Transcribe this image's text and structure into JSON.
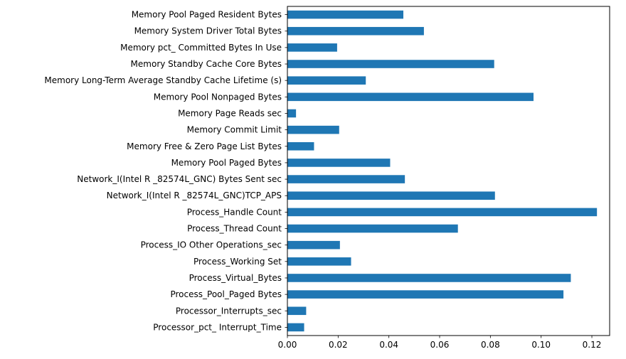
{
  "chart_data": {
    "type": "bar",
    "orientation": "horizontal",
    "title": "",
    "xlabel": "",
    "ylabel": "",
    "xlim": [
      0,
      0.127
    ],
    "x_ticks": [
      {
        "value": 0.0,
        "label": "0.00"
      },
      {
        "value": 0.02,
        "label": "0.02"
      },
      {
        "value": 0.04,
        "label": "0.04"
      },
      {
        "value": 0.06,
        "label": "0.06"
      },
      {
        "value": 0.08,
        "label": "0.08"
      },
      {
        "value": 0.1,
        "label": "0.10"
      },
      {
        "value": 0.12,
        "label": "0.12"
      }
    ],
    "grid": false,
    "bar_color": "#1f77b4",
    "categories": [
      "Processor_pct_ Interrupt_Time",
      "Processor_Interrupts_sec",
      "Process_Pool_Paged Bytes",
      "Process_Virtual_Bytes",
      "Process_Working Set",
      "Process_IO Other Operations_sec",
      "Process_Thread Count",
      "Process_Handle Count",
      "Network_I(Intel R _82574L_GNC)TCP_APS",
      "Network_I(Intel R _82574L_GNC) Bytes Sent sec",
      "Memory Pool Paged Bytes",
      "Memory Free & Zero Page List Bytes",
      "Memory Commit Limit",
      "Memory Page Reads sec",
      "Memory Pool Nonpaged Bytes",
      "Memory Long-Term Average Standby Cache Lifetime (s)",
      "Memory Standby Cache Core Bytes",
      "Memory pct_ Committed Bytes In Use",
      "Memory System Driver Total Bytes",
      "Memory Pool Paged Resident Bytes"
    ],
    "values": [
      0.0066,
      0.0074,
      0.1088,
      0.1117,
      0.0251,
      0.0207,
      0.0672,
      0.122,
      0.0818,
      0.0463,
      0.0405,
      0.0105,
      0.0204,
      0.0034,
      0.097,
      0.0309,
      0.0815,
      0.0196,
      0.0538,
      0.0457
    ]
  }
}
